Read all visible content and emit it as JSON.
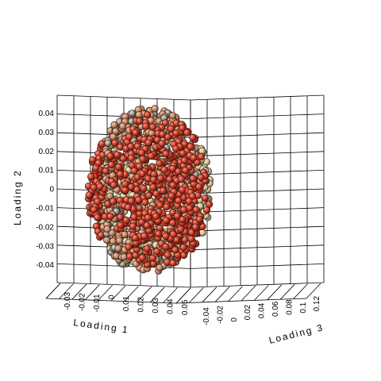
{
  "chart_data": {
    "type": "scatter",
    "subtype": "3d-scatter",
    "title": "",
    "axes": {
      "x": {
        "label": "Loading 1",
        "ticks": [
          "-0.03",
          "-0.02",
          "-0.01",
          "0",
          "0.01",
          "0.02",
          "0.03",
          "0.04",
          "0.05"
        ],
        "range": [
          -0.03,
          0.05
        ]
      },
      "y": {
        "label": "Loading 2",
        "ticks": [
          "0.04",
          "0.03",
          "0.02",
          "0.01",
          "0",
          "-0.01",
          "-0.02",
          "-0.03",
          "-0.04"
        ],
        "range": [
          -0.045,
          0.045
        ]
      },
      "z": {
        "label": "Loading 3",
        "ticks": [
          "-0.04",
          "-0.02",
          "0",
          "0.02",
          "0.04",
          "0.06",
          "0.08",
          "0.1",
          "0.12"
        ],
        "range": [
          -0.04,
          0.12
        ]
      }
    },
    "grid": true,
    "series": [
      {
        "name": "points",
        "description": "approx. spherical cloud of points centered near (0.01, 0, 0.03), colored by depth",
        "colors": {
          "front": "#d23c28",
          "mid": "#c98a66",
          "back": "#d7c69a",
          "core": "#9a9a92"
        }
      }
    ]
  }
}
